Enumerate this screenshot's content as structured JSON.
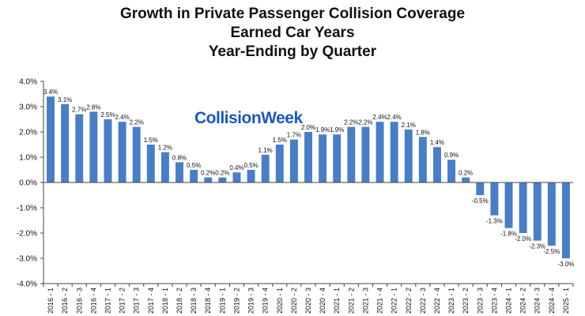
{
  "chart_data": {
    "type": "bar",
    "title_lines": [
      "Growth in Private Passenger Collision Coverage",
      "Earned Car Years",
      "Year-Ending by Quarter"
    ],
    "watermark": "CollisionWeek",
    "xlabel": "",
    "ylabel": "",
    "ylim": [
      -4.0,
      4.0
    ],
    "ytick_values": [
      4.0,
      3.0,
      2.0,
      1.0,
      0.0,
      -1.0,
      -2.0,
      -3.0,
      -4.0
    ],
    "ytick_labels": [
      "4.0%",
      "3.0%",
      "2.0%",
      "1.0%",
      "0.0%",
      "-1.0%",
      "-2.0%",
      "-3.0%",
      "-4.0%"
    ],
    "categories": [
      "2016 - 1",
      "2016 - 2",
      "2016 - 3",
      "2016 - 4",
      "2017 - 1",
      "2017 - 2",
      "2017 - 3",
      "2017 - 4",
      "2018 - 1",
      "2018 - 2",
      "2018 - 3",
      "2018 - 4",
      "2019 - 1",
      "2019 - 2",
      "2019 - 3",
      "2019 - 4",
      "2020 - 1",
      "2020 - 2",
      "2020 - 3",
      "2020 - 4",
      "2021 - 1",
      "2021 - 2",
      "2021 - 3",
      "2021 - 4",
      "2022 - 1",
      "2022 - 2",
      "2022 - 3",
      "2022 - 4",
      "2023 - 1",
      "2023 - 2",
      "2023 - 3",
      "2023 - 4",
      "2024 - 1",
      "2024 - 2",
      "2024 - 3",
      "2024 - 4",
      "2025 - 1"
    ],
    "values": [
      3.4,
      3.1,
      2.7,
      2.8,
      2.5,
      2.4,
      2.2,
      1.5,
      1.2,
      0.8,
      0.5,
      0.2,
      0.2,
      0.4,
      0.5,
      1.1,
      1.5,
      1.7,
      2.0,
      1.9,
      1.9,
      2.2,
      2.2,
      2.4,
      2.4,
      2.1,
      1.8,
      1.4,
      0.9,
      0.2,
      -0.5,
      -1.3,
      -1.8,
      -2.0,
      -2.3,
      -2.5,
      -3.0
    ],
    "labels": [
      "3.4%",
      "3.1%",
      "2.7%",
      "2.8%",
      "2.5%",
      "2.4%",
      "2.2%",
      "1.5%",
      "1.2%",
      "0.8%",
      "0.5%",
      "0.2%",
      "0.2%",
      "0.4%",
      "0.5%",
      "1.1%",
      "1.5%",
      "1.7%",
      "2.0%",
      "1.9%",
      "1.9%",
      "2.2%",
      "2.2%",
      "2.4%",
      "2.4%",
      "2.1%",
      "1.8%",
      "1.4%",
      "0.9%",
      "0.2%",
      "-0.5%",
      "-1.3%",
      "-1.8%",
      "-2.0%",
      "-2.3%",
      "-2.5%",
      "-3.0%"
    ],
    "bar_color": "#4a7ec4",
    "grid": false
  }
}
